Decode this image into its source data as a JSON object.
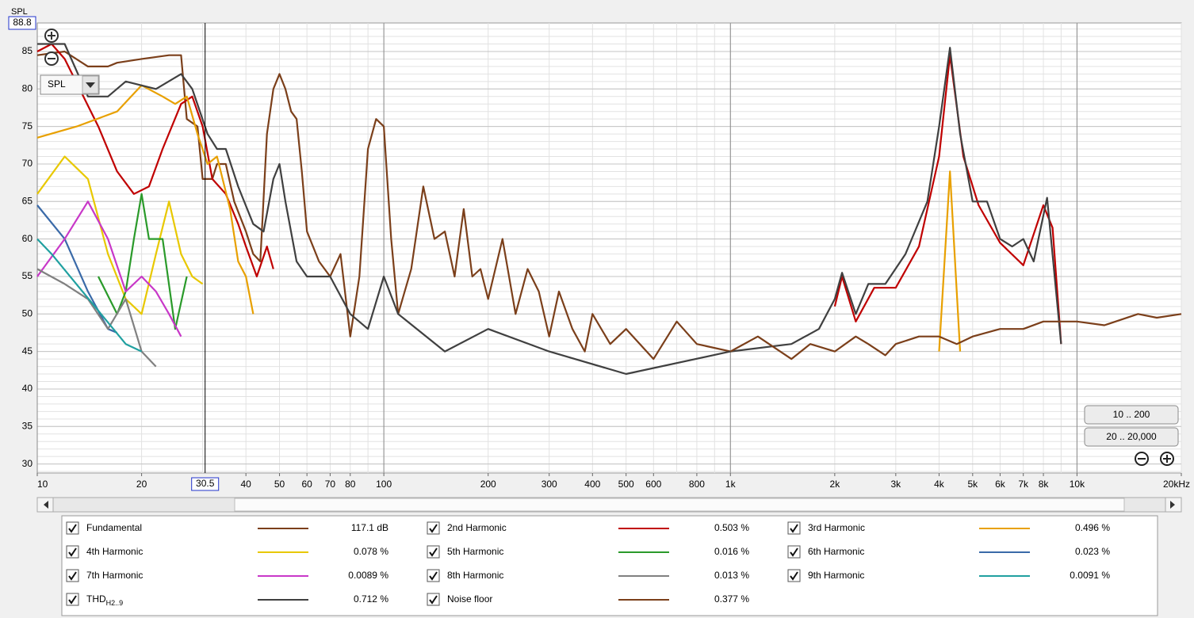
{
  "chart_data": {
    "type": "line",
    "y_label": "SPL",
    "view_selector": "SPL",
    "cursor_x": 30.5,
    "cursor_y": 88.8,
    "xlog": true,
    "xlim": [
      10,
      20000
    ],
    "ylim": [
      28.8,
      88.8
    ],
    "xticks": [
      10,
      20,
      40,
      50,
      60,
      70,
      80,
      100,
      200,
      300,
      400,
      500,
      600,
      800,
      {
        "value": 1000,
        "label": "1k"
      },
      {
        "value": 2000,
        "label": "2k"
      },
      {
        "value": 3000,
        "label": "3k"
      },
      {
        "value": 4000,
        "label": "4k"
      },
      {
        "value": 5000,
        "label": "5k"
      },
      {
        "value": 6000,
        "label": "6k"
      },
      {
        "value": 7000,
        "label": "7k"
      },
      {
        "value": 8000,
        "label": "8k"
      },
      {
        "value": 10000,
        "label": "10k"
      },
      {
        "value": 20000,
        "label": "20kHz"
      }
    ],
    "xgrid": [
      10,
      20,
      30,
      40,
      50,
      60,
      70,
      80,
      90,
      100,
      200,
      300,
      400,
      500,
      600,
      700,
      800,
      900,
      1000,
      2000,
      3000,
      4000,
      5000,
      6000,
      7000,
      8000,
      9000,
      10000,
      20000
    ],
    "yticks": [
      30,
      35,
      40,
      45,
      50,
      55,
      60,
      65,
      70,
      75,
      80,
      85
    ],
    "ygrid": [
      29,
      30,
      31,
      32,
      33,
      34,
      35,
      36,
      37,
      38,
      39,
      40,
      41,
      42,
      43,
      44,
      45,
      46,
      47,
      48,
      49,
      50,
      51,
      52,
      53,
      54,
      55,
      56,
      57,
      58,
      59,
      60,
      61,
      62,
      63,
      64,
      65,
      66,
      67,
      68,
      69,
      70,
      71,
      72,
      73,
      74,
      75,
      76,
      77,
      78,
      79,
      80,
      81,
      82,
      83,
      84,
      85,
      86,
      87,
      88
    ],
    "grid": true,
    "buttons": [
      "10 .. 200",
      "20 .. 20,000"
    ],
    "series": [
      {
        "name": "Fundamental",
        "color": "#7b3f1a",
        "legend_value": "117.1 dB",
        "x": [
          10,
          12,
          14,
          16,
          17,
          20,
          24,
          26,
          27,
          29,
          30,
          32,
          33,
          35,
          37,
          40,
          42,
          44,
          46,
          48,
          50,
          52,
          54,
          56,
          58,
          60,
          65,
          70,
          75,
          80,
          85,
          90,
          95,
          100,
          105,
          110,
          120,
          130,
          140,
          150,
          160,
          170,
          180,
          190,
          200,
          220,
          240,
          260,
          280,
          300,
          320,
          350,
          380,
          400,
          450,
          500,
          600,
          700,
          800,
          1000
        ],
        "values": [
          84.5,
          85,
          83,
          83,
          83.5,
          84,
          84.5,
          84.5,
          76,
          75,
          68,
          68,
          70,
          70,
          65,
          61,
          58,
          57,
          74,
          80,
          82,
          80,
          77,
          76,
          69,
          61,
          57,
          55,
          58,
          47,
          55,
          72,
          76,
          75,
          60,
          50,
          56,
          67,
          60,
          61,
          55,
          64,
          55,
          56,
          52,
          60,
          50,
          56,
          53,
          47,
          53,
          48,
          45,
          50,
          46,
          48,
          44,
          49,
          46,
          45
        ]
      },
      {
        "name": "2nd Harmonic",
        "color": "#c00000",
        "legend_value": "0.503 %",
        "x": [
          10,
          11,
          12,
          15,
          17,
          19,
          21,
          23,
          26,
          28,
          30,
          32,
          35,
          38,
          40,
          43,
          46,
          48,
          1500,
          2000,
          2100,
          2300,
          2600,
          3000,
          3500,
          4000,
          4300,
          4700,
          5200,
          6000,
          7000,
          8000,
          8500,
          9000
        ],
        "values": [
          85,
          86,
          84,
          75,
          69,
          66,
          67,
          72,
          78,
          79,
          75,
          68,
          66,
          62,
          59,
          55,
          59,
          56,
          null,
          51,
          55,
          49,
          53.5,
          53.5,
          59,
          71,
          84.5,
          71,
          64.5,
          59.5,
          56.5,
          64.5,
          61.5,
          46
        ]
      },
      {
        "name": "3rd Harmonic",
        "color": "#e8a000",
        "legend_value": "0.496 %",
        "x": [
          10,
          13,
          17,
          20,
          23,
          25,
          27,
          29,
          31,
          33,
          36,
          38,
          40,
          42,
          1000,
          4000,
          4300,
          4600
        ],
        "values": [
          73.5,
          75,
          77,
          80.5,
          79,
          78,
          79,
          74,
          70,
          71,
          64,
          57,
          55,
          50,
          null,
          45,
          69,
          45
        ]
      },
      {
        "name": "4th Harmonic",
        "color": "#e8c800",
        "legend_value": "0.078 %",
        "x": [
          10,
          12,
          14,
          16,
          18,
          20,
          22,
          24,
          26,
          28,
          30
        ],
        "values": [
          66,
          71,
          68,
          58,
          52,
          50,
          58,
          65,
          58,
          55,
          54
        ]
      },
      {
        "name": "5th Harmonic",
        "color": "#2a9a2a",
        "legend_value": "0.016 %",
        "x": [
          15,
          17,
          18,
          19,
          20,
          21,
          23,
          25,
          27
        ],
        "values": [
          55,
          50,
          53,
          60,
          66,
          60,
          60,
          48,
          55
        ]
      },
      {
        "name": "6th Harmonic",
        "color": "#3a6aa8",
        "legend_value": "0.023 %",
        "x": [
          10,
          12,
          14,
          16,
          17
        ],
        "values": [
          64.5,
          60,
          53,
          48,
          47.5
        ]
      },
      {
        "name": "7th Harmonic",
        "color": "#c838c8",
        "legend_value": "0.0089 %",
        "x": [
          10,
          12,
          14,
          16,
          18,
          20,
          22,
          24,
          26
        ],
        "values": [
          55,
          60,
          65,
          60,
          53,
          55,
          53,
          50,
          47
        ]
      },
      {
        "name": "8th Harmonic",
        "color": "#808080",
        "legend_value": "0.013 %",
        "x": [
          10,
          12,
          14,
          16,
          18,
          20,
          22
        ],
        "values": [
          56,
          54,
          52,
          48,
          52,
          45,
          43
        ]
      },
      {
        "name": "9th Harmonic",
        "color": "#20a0a0",
        "legend_value": "0.0091 %",
        "x": [
          10,
          11,
          18,
          20
        ],
        "values": [
          60,
          58,
          46,
          45
        ]
      },
      {
        "name": "THD",
        "name_sub": "H2..9",
        "color": "#404040",
        "legend_value": "0.712 %",
        "x": [
          10,
          12,
          14,
          16,
          18,
          22,
          26,
          28,
          31,
          33,
          35,
          38,
          42,
          45,
          48,
          50,
          52,
          56,
          60,
          70,
          80,
          90,
          100,
          110,
          150,
          200,
          300,
          500,
          1000,
          1500,
          1800,
          2000,
          2100,
          2300,
          2500,
          2800,
          3200,
          3700,
          4000,
          4300,
          4600,
          5000,
          5500,
          6000,
          6500,
          7000,
          7500,
          8200,
          9000
        ],
        "values": [
          86,
          86,
          79,
          79,
          81,
          80,
          82,
          80,
          74,
          72,
          72,
          67,
          62,
          61,
          68,
          70,
          65,
          57,
          55,
          55,
          50,
          48,
          55,
          50,
          45,
          48,
          45,
          42,
          45,
          46,
          48,
          52,
          55.5,
          50,
          54,
          54,
          58,
          65,
          75,
          85.5,
          74,
          65,
          65,
          60,
          59,
          60,
          57,
          65.5,
          46
        ]
      },
      {
        "name": "Noise floor",
        "color": "#7b3f1a",
        "legend_value": "0.377 %",
        "x": [
          1000,
          1200,
          1500,
          1700,
          2000,
          2300,
          2500,
          2800,
          3000,
          3500,
          4000,
          4500,
          5000,
          6000,
          7000,
          8000,
          10000,
          12000,
          15000,
          17000,
          20000
        ],
        "values": [
          45,
          47,
          44,
          46,
          45,
          47,
          46,
          44.5,
          46,
          47,
          47,
          46,
          47,
          48,
          48,
          49,
          49,
          48.5,
          50,
          49.5,
          50
        ]
      }
    ]
  }
}
